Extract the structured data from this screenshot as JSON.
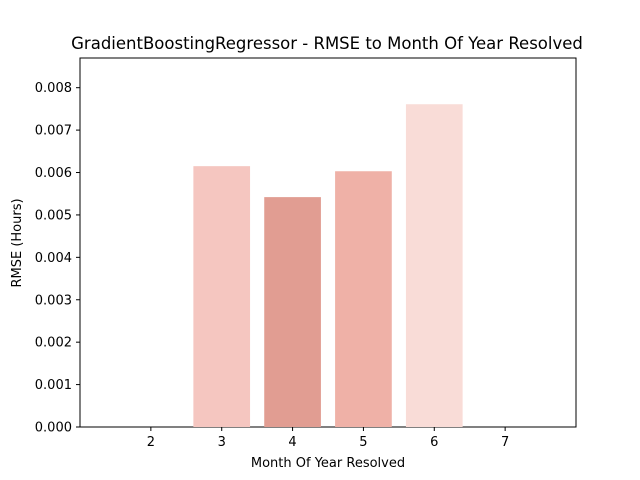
{
  "chart_data": {
    "type": "bar",
    "title": "GradientBoostingRegressor - RMSE to Month Of Year Resolved",
    "xlabel": "Month Of Year Resolved",
    "ylabel": "RMSE (Hours)",
    "categories": [
      "3",
      "4",
      "5",
      "6"
    ],
    "x": [
      3,
      4,
      5,
      6
    ],
    "values": [
      0.00615,
      0.00542,
      0.00603,
      0.00761
    ],
    "bar_colors": [
      "#f5c6c0",
      "#e19d92",
      "#efb1a7",
      "#f9dcd7"
    ],
    "xlim": [
      1,
      8
    ],
    "ylim": [
      0,
      0.0087
    ],
    "x_ticks": [
      2,
      3,
      4,
      5,
      6,
      7
    ],
    "y_ticks": [
      0.0,
      0.001,
      0.002,
      0.003,
      0.004,
      0.005,
      0.006,
      0.007,
      0.008
    ],
    "y_tick_labels": [
      "0.000",
      "0.001",
      "0.002",
      "0.003",
      "0.004",
      "0.005",
      "0.006",
      "0.007",
      "0.008"
    ],
    "grid": false,
    "legend": "none"
  }
}
